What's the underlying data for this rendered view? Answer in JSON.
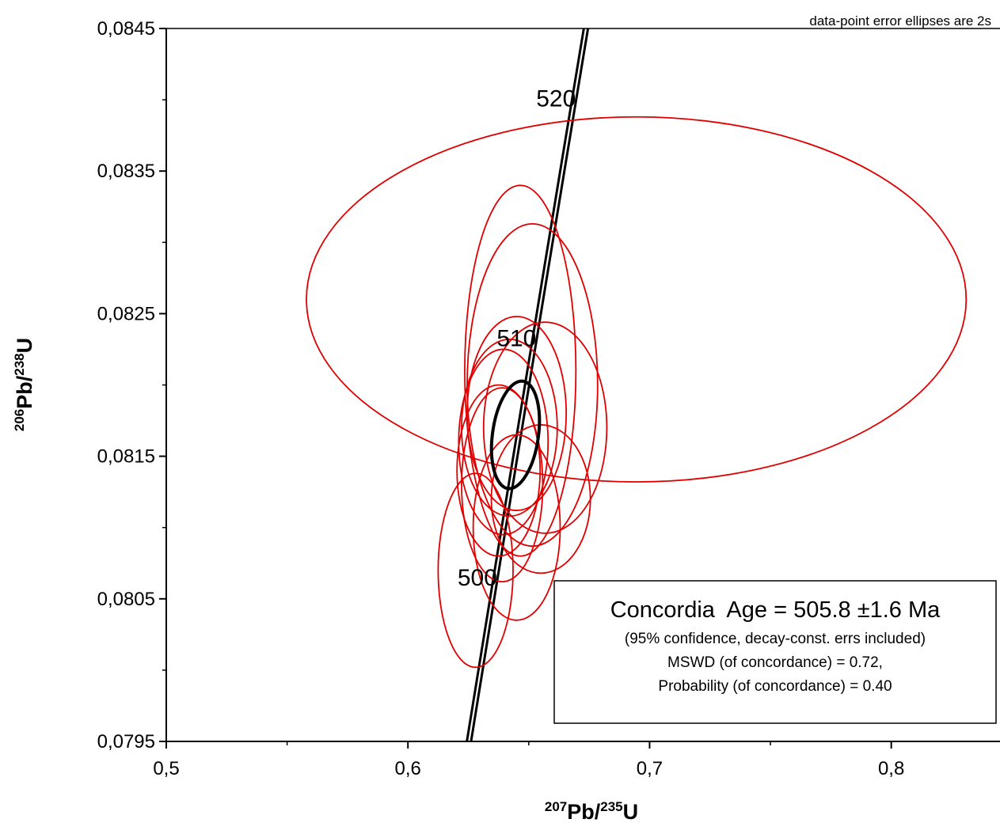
{
  "chart_data": {
    "type": "scatter",
    "subtype": "concordia-diagram",
    "title": "",
    "note": "data-point error ellipses are 2s",
    "xlabel": {
      "pre": "207",
      "main1": "Pb/",
      "mid": "235",
      "main2": "U"
    },
    "ylabel": {
      "pre": "206",
      "main1": "Pb/",
      "mid": "238",
      "main2": "U"
    },
    "xlim": [
      0.5,
      0.845
    ],
    "ylim": [
      0.0795,
      0.0845
    ],
    "x_ticks": [
      0.5,
      0.6,
      0.7,
      0.8
    ],
    "x_tick_labels": [
      "0,5",
      "0,6",
      "0,7",
      "0,8"
    ],
    "x_minor_ticks": [
      0.55,
      0.65,
      0.75
    ],
    "y_ticks": [
      0.0795,
      0.0805,
      0.0815,
      0.0825,
      0.0835,
      0.0845
    ],
    "y_tick_labels": [
      "0,0795",
      "0,0805",
      "0,0815",
      "0,0825",
      "0,0835",
      "0,0845"
    ],
    "y_minor_ticks": [
      0.08,
      0.081,
      0.082,
      0.083,
      0.084
    ],
    "concordia": {
      "color": "#000000",
      "age_range_ma": [
        493,
        530
      ],
      "age_labels": [
        {
          "age": 500,
          "text": "500",
          "anchor": "end"
        },
        {
          "age": 510,
          "text": "510",
          "anchor": "end"
        },
        {
          "age": 520,
          "text": "520",
          "anchor": "end"
        }
      ]
    },
    "data_ellipses": {
      "color": "#e00000",
      "items": [
        {
          "cx": 0.6945,
          "cy": 0.0826,
          "rx": 0.1365,
          "ry": 0.00128
        },
        {
          "cx": 0.6465,
          "cy": 0.0821,
          "rx": 0.023,
          "ry": 0.0013
        },
        {
          "cx": 0.6515,
          "cy": 0.082,
          "rx": 0.027,
          "ry": 0.00113
        },
        {
          "cx": 0.6568,
          "cy": 0.0817,
          "rx": 0.0255,
          "ry": 0.00074
        },
        {
          "cx": 0.645,
          "cy": 0.0818,
          "rx": 0.0205,
          "ry": 0.00068
        },
        {
          "cx": 0.642,
          "cy": 0.0817,
          "rx": 0.0198,
          "ry": 0.00062
        },
        {
          "cx": 0.6395,
          "cy": 0.0816,
          "rx": 0.0185,
          "ry": 0.00065
        },
        {
          "cx": 0.6375,
          "cy": 0.0814,
          "rx": 0.0172,
          "ry": 0.0006
        },
        {
          "cx": 0.639,
          "cy": 0.0813,
          "rx": 0.0168,
          "ry": 0.00068
        },
        {
          "cx": 0.655,
          "cy": 0.0812,
          "rx": 0.0205,
          "ry": 0.00052
        },
        {
          "cx": 0.645,
          "cy": 0.081,
          "rx": 0.018,
          "ry": 0.00065
        },
        {
          "cx": 0.628,
          "cy": 0.0807,
          "rx": 0.0155,
          "ry": 0.00068
        }
      ]
    },
    "concordia_age_ellipse": {
      "cx": 0.6445,
      "cy": 0.08165,
      "rx": 0.0095,
      "ry": 0.00038,
      "color": "#000000"
    },
    "result_box": {
      "title": "Concordia  Age = 505.8 ±1.6 Ma",
      "line1": "(95% confidence, decay-const. errs included)",
      "line2": "MSWD (of concordance) = 0.72,",
      "line3": "Probability (of concordance) = 0.40"
    }
  }
}
